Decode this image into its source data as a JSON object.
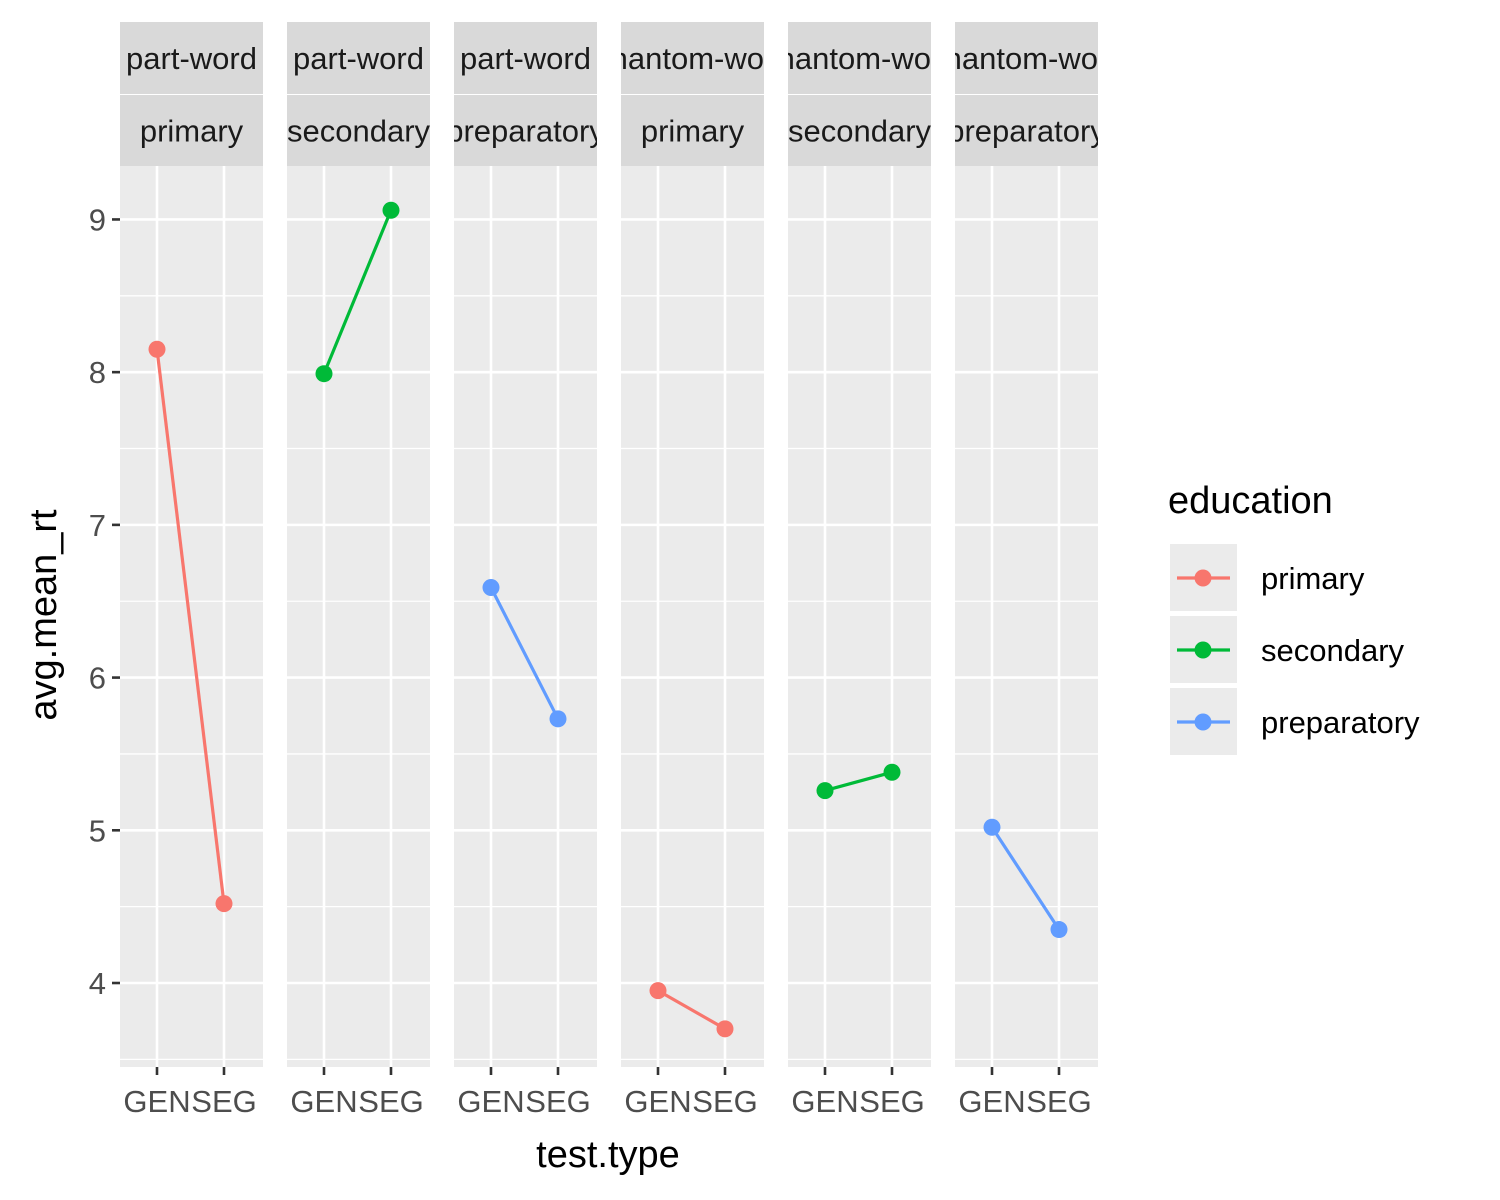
{
  "chart_data": {
    "type": "line",
    "xlabel": "test.type",
    "ylabel": "avg.mean_rt",
    "x_categories": [
      "GEN",
      "SEG"
    ],
    "y_ticks": [
      4,
      5,
      6,
      7,
      8,
      9
    ],
    "ylim": [
      3.45,
      9.35
    ],
    "grid": true,
    "legend": {
      "title": "education",
      "placement": "right",
      "entries": [
        {
          "label": "primary",
          "color": "#F8766D"
        },
        {
          "label": "secondary",
          "color": "#00BA38"
        },
        {
          "label": "preparatory",
          "color": "#619CFF"
        }
      ]
    },
    "panels": [
      {
        "strip_top": "part-word",
        "strip_bottom": "primary",
        "series": "primary",
        "color": "#F8766D",
        "values": [
          8.15,
          4.52
        ]
      },
      {
        "strip_top": "part-word",
        "strip_bottom": "secondary",
        "series": "secondary",
        "color": "#00BA38",
        "values": [
          7.99,
          9.06
        ]
      },
      {
        "strip_top": "part-word",
        "strip_bottom": "preparatory",
        "series": "preparatory",
        "color": "#619CFF",
        "values": [
          6.59,
          5.73
        ]
      },
      {
        "strip_top": "phantom-word",
        "strip_bottom": "primary",
        "series": "primary",
        "color": "#F8766D",
        "values": [
          3.95,
          3.7
        ]
      },
      {
        "strip_top": "phantom-word",
        "strip_bottom": "secondary",
        "series": "secondary",
        "color": "#00BA38",
        "values": [
          5.26,
          5.38
        ]
      },
      {
        "strip_top": "phantom-word",
        "strip_bottom": "preparatory",
        "series": "preparatory",
        "color": "#619CFF",
        "values": [
          5.02,
          4.35
        ]
      }
    ]
  }
}
